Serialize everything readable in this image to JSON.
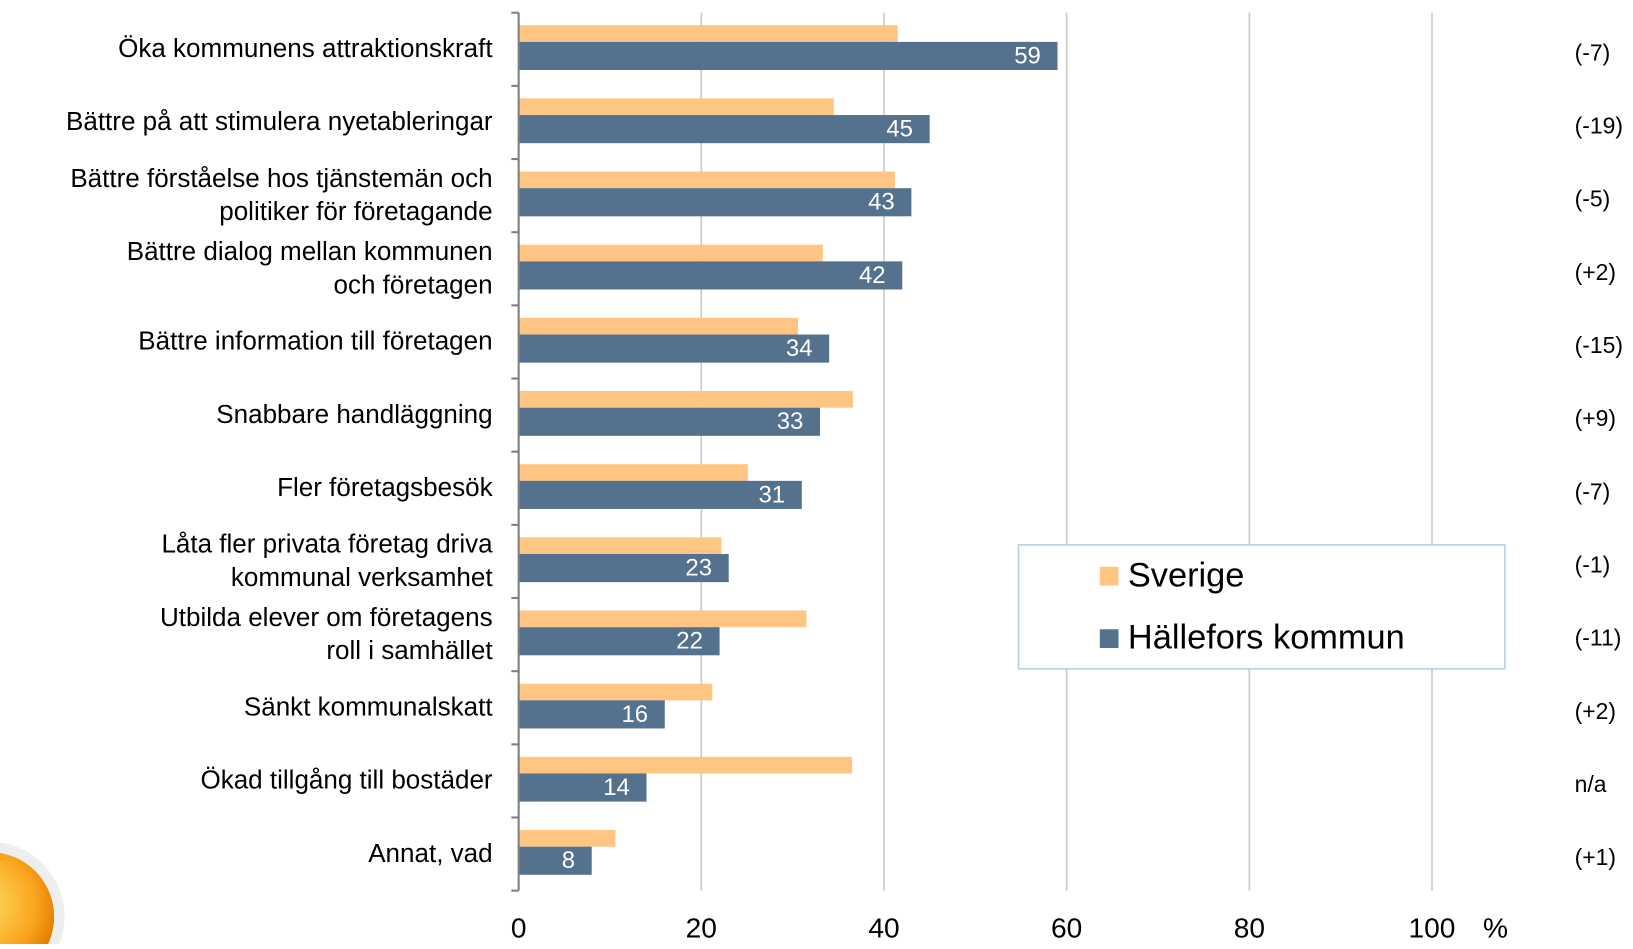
{
  "chart_data": {
    "type": "bar",
    "orientation": "horizontal",
    "categories": [
      "Öka kommunens attraktionskraft",
      "Bättre på att stimulera nyetableringar",
      "Bättre förståelse hos tjänstemän och\npolitiker för företagande",
      "Bättre dialog mellan kommunen\noch företagen",
      "Bättre information till företagen",
      "Snabbare handläggning",
      "Fler företagsbesök",
      "Låta fler privata företag driva\nkommunal verksamhet",
      "Utbilda elever om företagens\nroll i samhället",
      "Sänkt kommunalskatt",
      "Ökad tillgång till bostäder",
      "Annat, vad"
    ],
    "series": [
      {
        "name": "Sverige",
        "color": "#fec583",
        "values": [
          41.5,
          34.5,
          41.2,
          33.3,
          30.6,
          36.6,
          25.1,
          22.2,
          31.5,
          21.2,
          36.5,
          10.6
        ]
      },
      {
        "name": "Hällefors kommun",
        "color": "#54718d",
        "values": [
          59,
          45,
          43,
          42,
          34,
          33,
          31,
          23,
          22,
          16,
          14,
          8
        ],
        "show_labels": true
      }
    ],
    "annotations": [
      "(-7)",
      "(-19)",
      "(-5)",
      "(+2)",
      "(-15)",
      "(+9)",
      "(-7)",
      "(-1)",
      "(-11)",
      "(+2)",
      "n/a",
      "(+1)"
    ],
    "xlim": [
      0,
      100
    ],
    "xticks": [
      0,
      20,
      40,
      60,
      80,
      100
    ],
    "x_unit": "%",
    "grid": true,
    "legend": "lower right"
  }
}
